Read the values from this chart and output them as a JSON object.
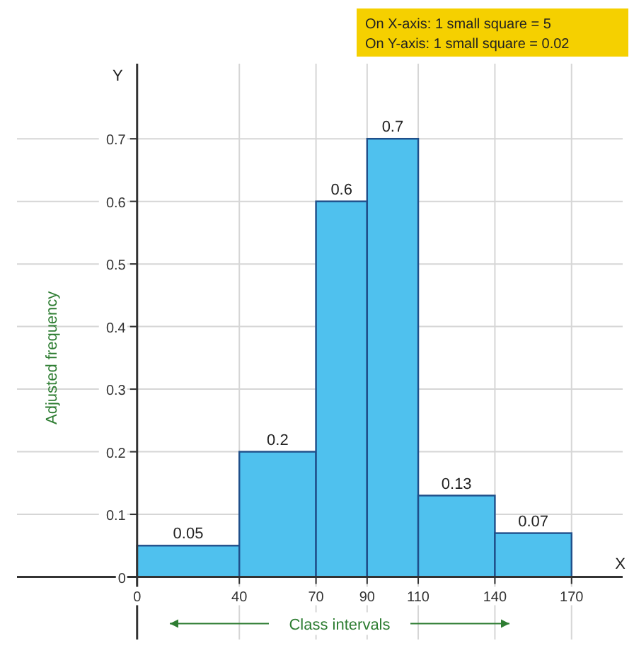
{
  "chart_data": {
    "type": "histogram",
    "xlabel": "Class intervals",
    "ylabel": "Adjusted frequency",
    "bins": [
      0,
      40,
      70,
      90,
      110,
      140,
      170
    ],
    "values": [
      0.05,
      0.2,
      0.6,
      0.7,
      0.13,
      0.07
    ],
    "color": "#4fc1ee",
    "data_labels": true,
    "xlim": [
      -47,
      190
    ],
    "ylim": [
      -0.1,
      0.82
    ],
    "xticks": [
      0,
      40,
      70,
      90,
      110,
      140,
      170
    ],
    "yticks": [
      0,
      0.1,
      0.2,
      0.3,
      0.4,
      0.5,
      0.6,
      0.7
    ],
    "grid": true,
    "annotations": [
      "On X-axis: 1 small square = 5",
      "On Y-axis: 1 small square = 0.02",
      "X",
      "Y"
    ]
  }
}
